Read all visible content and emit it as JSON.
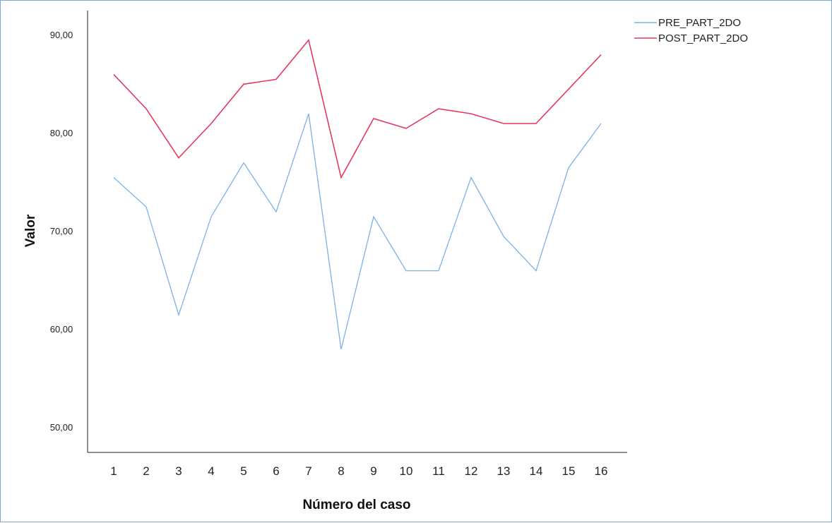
{
  "chart_data": {
    "type": "line",
    "title": "",
    "xlabel": "Número del caso",
    "ylabel": "Valor",
    "categories": [
      "1",
      "2",
      "3",
      "4",
      "5",
      "6",
      "7",
      "8",
      "9",
      "10",
      "11",
      "12",
      "13",
      "14",
      "15",
      "16"
    ],
    "ylim": [
      47.5,
      92.5
    ],
    "yticks": [
      50,
      60,
      70,
      80,
      90
    ],
    "ytick_labels": [
      "50,00",
      "60,00",
      "70,00",
      "80,00",
      "90,00"
    ],
    "grid": false,
    "legend_position": "top-right",
    "series": [
      {
        "name": "PRE_PART_2DO",
        "color": "#7cb1e8",
        "values": [
          75.5,
          72.5,
          61.5,
          71.5,
          77,
          72,
          82,
          58,
          71.5,
          66,
          66,
          75.5,
          69.5,
          66,
          76.5,
          81
        ]
      },
      {
        "name": "POST_PART_2DO",
        "color": "#e3395f",
        "values": [
          86,
          82.5,
          77.5,
          81,
          85,
          85.5,
          89.5,
          75.5,
          81.5,
          80.5,
          82.5,
          82,
          81,
          81,
          84.5,
          88
        ]
      }
    ]
  }
}
